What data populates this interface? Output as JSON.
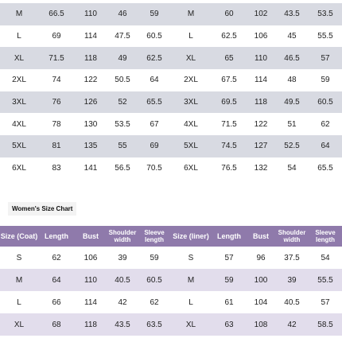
{
  "men_table": {
    "rows": [
      [
        "M",
        "66.5",
        "110",
        "46",
        "59",
        "M",
        "60",
        "102",
        "43.5",
        "53.5"
      ],
      [
        "L",
        "69",
        "114",
        "47.5",
        "60.5",
        "L",
        "62.5",
        "106",
        "45",
        "55.5"
      ],
      [
        "XL",
        "71.5",
        "118",
        "49",
        "62.5",
        "XL",
        "65",
        "110",
        "46.5",
        "57"
      ],
      [
        "2XL",
        "74",
        "122",
        "50.5",
        "64",
        "2XL",
        "67.5",
        "114",
        "48",
        "59"
      ],
      [
        "3XL",
        "76",
        "126",
        "52",
        "65.5",
        "3XL",
        "69.5",
        "118",
        "49.5",
        "60.5"
      ],
      [
        "4XL",
        "78",
        "130",
        "53.5",
        "67",
        "4XL",
        "71.5",
        "122",
        "51",
        "62"
      ],
      [
        "5XL",
        "81",
        "135",
        "55",
        "69",
        "5XL",
        "74.5",
        "127",
        "52.5",
        "64"
      ],
      [
        "6XL",
        "83",
        "141",
        "56.5",
        "70.5",
        "6XL",
        "76.5",
        "132",
        "54",
        "65.5"
      ]
    ]
  },
  "women_table": {
    "title": "Women's Size Chart",
    "header": [
      "Size (Coat)",
      "Length",
      "Bust",
      "Shoulder width",
      "Sleeve length",
      "Size (liner)",
      "Length",
      "Bust",
      "Shoulder width",
      "Sleeve length"
    ],
    "rows": [
      [
        "S",
        "62",
        "106",
        "39",
        "59",
        "S",
        "57",
        "96",
        "37.5",
        "54"
      ],
      [
        "M",
        "64",
        "110",
        "40.5",
        "60.5",
        "M",
        "59",
        "100",
        "39",
        "55.5"
      ],
      [
        "L",
        "66",
        "114",
        "42",
        "62",
        "L",
        "61",
        "104",
        "40.5",
        "57"
      ],
      [
        "XL",
        "68",
        "118",
        "43.5",
        "63.5",
        "XL",
        "63",
        "108",
        "42",
        "58.5"
      ]
    ]
  }
}
